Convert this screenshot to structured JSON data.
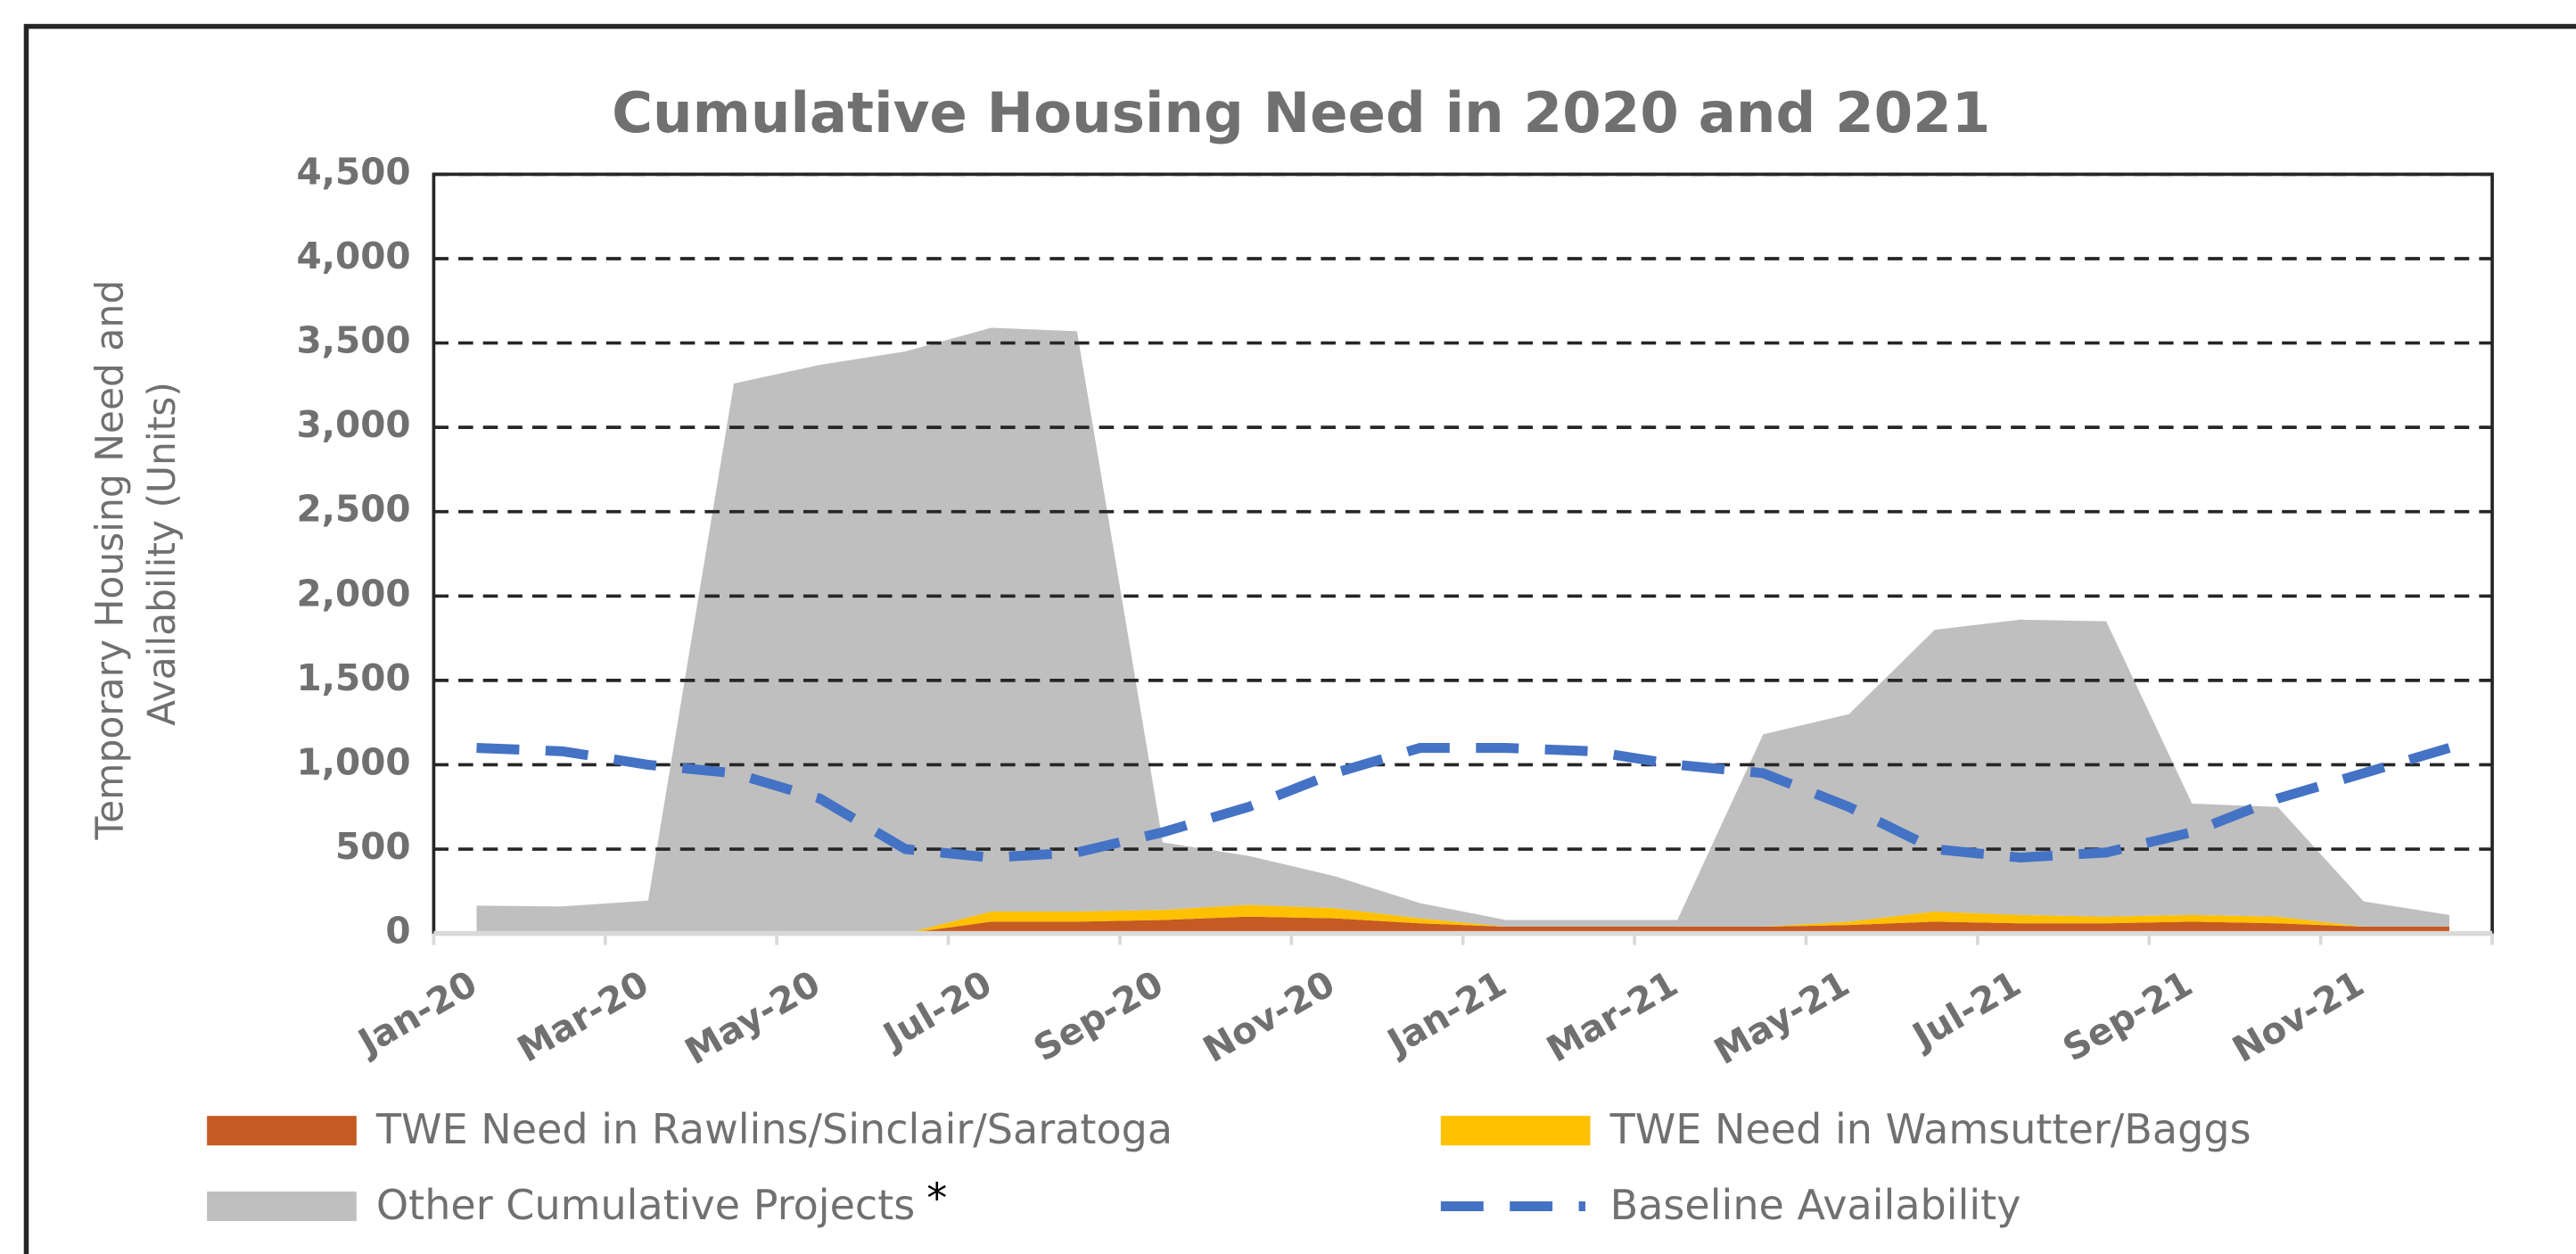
{
  "chart_data": {
    "type": "area",
    "stacked": true,
    "title": "Cumulative Housing Need in 2020 and 2021",
    "ylabel": [
      "Temporary Housing Need and",
      "Availability (Units)"
    ],
    "categories": [
      "Jan-20",
      null,
      "Mar-20",
      null,
      "May-20",
      null,
      "Jul-20",
      null,
      "Sep-20",
      null,
      "Nov-20",
      null,
      "Jan-21",
      null,
      "Mar-21",
      null,
      "May-21",
      null,
      "Jul-21",
      null,
      "Sep-21",
      null,
      "Nov-21",
      null
    ],
    "ylim": [
      0,
      4500
    ],
    "yticks": [
      0,
      500,
      {
        "value": 1000,
        "label": "1,000"
      },
      {
        "value": 1500,
        "label": "1,500"
      },
      {
        "value": 2000,
        "label": "2,000"
      },
      {
        "value": 2500,
        "label": "2,500"
      },
      {
        "value": 3000,
        "label": "3,000"
      },
      {
        "value": 3500,
        "label": "3,500"
      },
      {
        "value": 4000,
        "label": "4,000"
      },
      {
        "value": 4500,
        "label": "4,500"
      }
    ],
    "grid": true,
    "series": [
      {
        "name": "TWE Need in Rawlins/Sinclair/Saratoga",
        "color": "#c55a22",
        "values": [
          0,
          0,
          0,
          0,
          0,
          0,
          70,
          70,
          80,
          100,
          90,
          60,
          40,
          40,
          40,
          40,
          50,
          70,
          60,
          60,
          70,
          60,
          40,
          40
        ]
      },
      {
        "name": "TWE Need in Wamsutter/Baggs",
        "color": "#ffc000",
        "values": [
          0,
          0,
          0,
          0,
          0,
          0,
          60,
          60,
          60,
          70,
          60,
          30,
          0,
          0,
          0,
          0,
          20,
          60,
          50,
          40,
          40,
          40,
          0,
          0
        ]
      },
      {
        "name": "Other Cumulative Projects",
        "color": "#bfbfbf",
        "annotation": "*",
        "values": [
          165,
          160,
          195,
          3260,
          3370,
          3450,
          3460,
          3440,
          400,
          290,
          190,
          90,
          40,
          40,
          40,
          1140,
          1230,
          1670,
          1750,
          1750,
          660,
          650,
          150,
          70
        ]
      },
      {
        "name": "Baseline Availability",
        "color": "#4472c4",
        "type": "line",
        "dashed": true,
        "values": [
          1100,
          1080,
          1000,
          950,
          800,
          500,
          450,
          480,
          600,
          750,
          950,
          1100,
          1100,
          1080,
          1000,
          950,
          750,
          500,
          450,
          480,
          600,
          800,
          950,
          1100
        ]
      }
    ]
  }
}
